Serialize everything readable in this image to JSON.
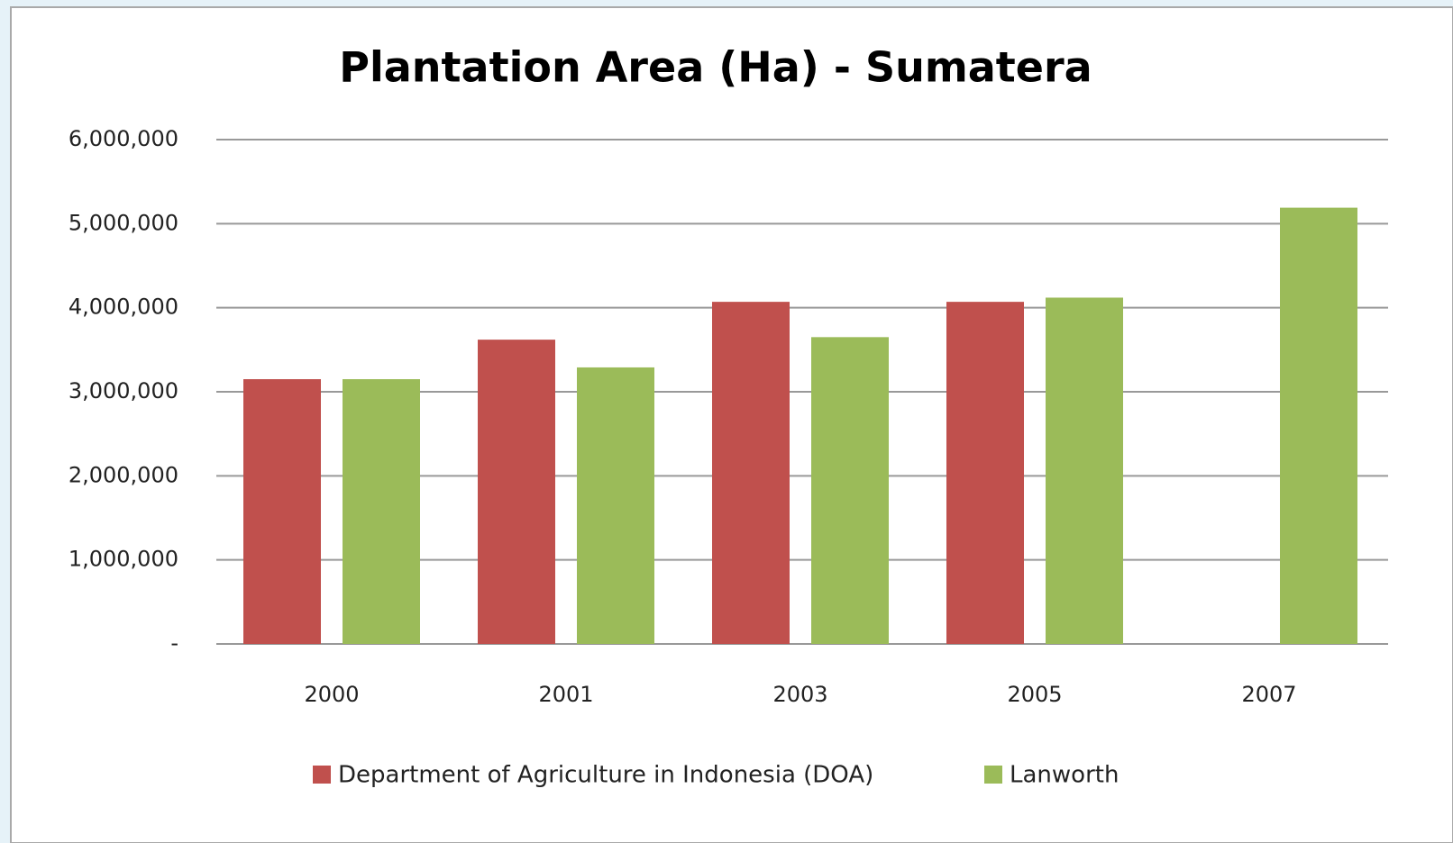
{
  "chart_data": {
    "type": "bar",
    "title": "Plantation Area (Ha) - Sumatera",
    "categories": [
      "2000",
      "2001",
      "2003",
      "2005",
      "2007"
    ],
    "series": [
      {
        "name": "Department of Agriculture in Indonesia (DOA)",
        "color": "#c0504d",
        "values": [
          3150000,
          3620000,
          4070000,
          4070000,
          null
        ]
      },
      {
        "name": "Lanworth",
        "color": "#9bbb59",
        "values": [
          3150000,
          3290000,
          3650000,
          4120000,
          5190000
        ]
      }
    ],
    "ylim": [
      0,
      6000000
    ],
    "yticks": [
      {
        "value": 0,
        "label": "-"
      },
      {
        "value": 1000000,
        "label": "1,000,000"
      },
      {
        "value": 2000000,
        "label": "2,000,000"
      },
      {
        "value": 3000000,
        "label": "3,000,000"
      },
      {
        "value": 4000000,
        "label": "4,000,000"
      },
      {
        "value": 5000000,
        "label": "5,000,000"
      },
      {
        "value": 6000000,
        "label": "6,000,000"
      }
    ],
    "grid": true,
    "legend": "bottom"
  }
}
